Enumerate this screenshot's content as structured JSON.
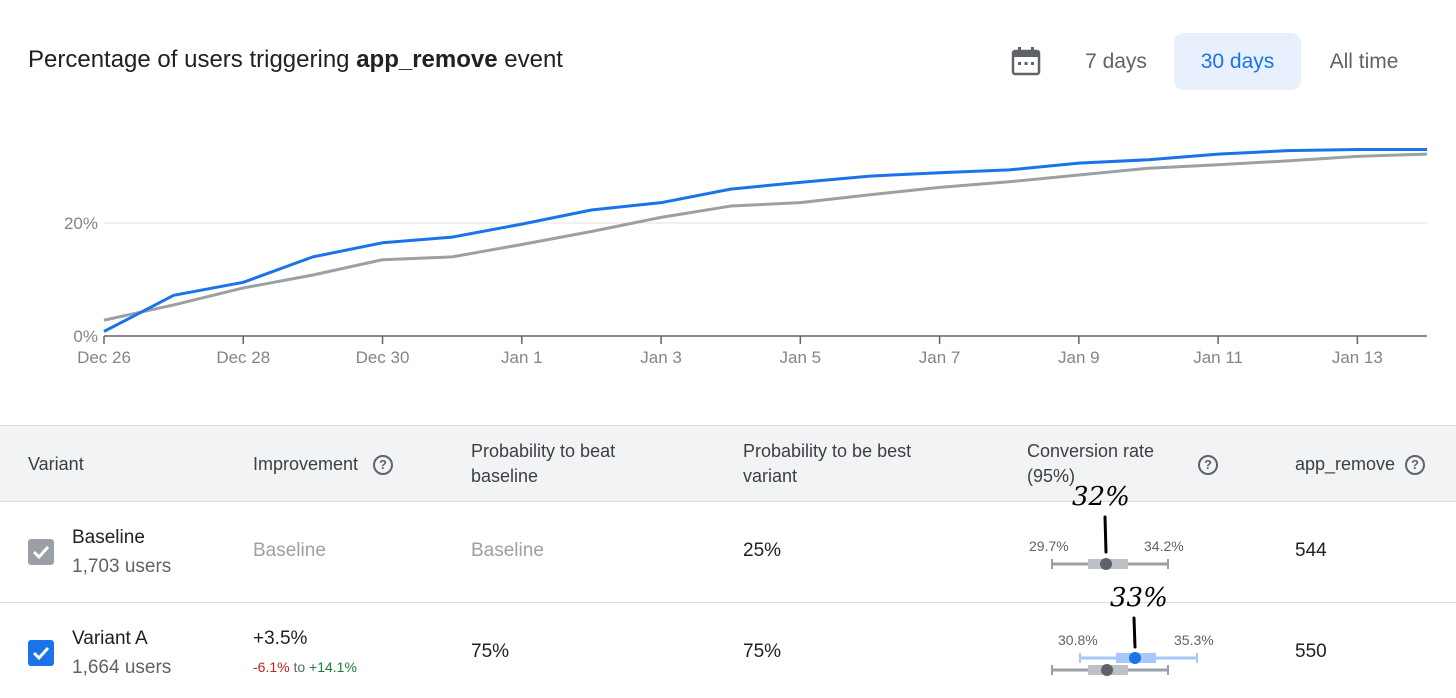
{
  "header": {
    "title_prefix": "Percentage of users triggering ",
    "title_event": "app_remove",
    "title_suffix": " event",
    "calendar_icon": "calendar-icon",
    "ranges": [
      "7 days",
      "30 days",
      "All time"
    ],
    "active_range": "30 days"
  },
  "chart_data": {
    "type": "line",
    "x": [
      "Dec 26",
      "Dec 27",
      "Dec 28",
      "Dec 29",
      "Dec 30",
      "Dec 31",
      "Jan 1",
      "Jan 2",
      "Jan 3",
      "Jan 4",
      "Jan 5",
      "Jan 6",
      "Jan 7",
      "Jan 8",
      "Jan 9",
      "Jan 10",
      "Jan 11",
      "Jan 12",
      "Jan 13",
      "Jan 14"
    ],
    "x_tick_labels": [
      "Dec 26",
      "Dec 28",
      "Dec 30",
      "Jan 1",
      "Jan 3",
      "Jan 5",
      "Jan 7",
      "Jan 9",
      "Jan 11",
      "Jan 13"
    ],
    "y_tick_labels": [
      "0%",
      "20%"
    ],
    "ylim": [
      0,
      40
    ],
    "grid": true,
    "series": [
      {
        "color": "#1a73e8",
        "values": [
          0.8,
          7.2,
          9.5,
          14.0,
          16.5,
          17.5,
          19.8,
          22.3,
          23.6,
          26.0,
          27.2,
          28.3,
          28.9,
          29.4,
          30.6,
          31.2,
          32.2,
          32.8,
          33.0,
          33.0
        ]
      },
      {
        "color": "#9aa0a6",
        "values": [
          2.8,
          5.5,
          8.5,
          10.8,
          13.5,
          14.0,
          16.2,
          18.5,
          21.0,
          23.0,
          23.6,
          25.0,
          26.3,
          27.3,
          28.5,
          29.7,
          30.3,
          31.0,
          31.8,
          32.2
        ]
      }
    ]
  },
  "table": {
    "headers": {
      "variant": "Variant",
      "improvement": "Improvement",
      "prob_beat_1": "Probability to beat",
      "prob_beat_2": "baseline",
      "prob_best_1": "Probability to be best",
      "prob_best_2": "variant",
      "conv_1": "Conversion rate",
      "conv_2": "(95%)",
      "event": "app_remove",
      "help_icon": "?"
    },
    "rows": [
      {
        "name": "Baseline",
        "users": "1,703 users",
        "improvement": "Baseline",
        "prob_beat": "Baseline",
        "prob_best": "25%",
        "ci_low": "29.7%",
        "ci_high": "34.2%",
        "annotation": "32%",
        "count": "544",
        "checked": true,
        "check_color": "#9aa0a6",
        "ci": {
          "low": 29.7,
          "point": 32.0,
          "high": 34.2
        }
      },
      {
        "name": "Variant A",
        "users": "1,664 users",
        "improvement": "+3.5%",
        "improvement_low": "-6.1%",
        "improvement_to": "to",
        "improvement_high": "+14.1%",
        "prob_beat": "75%",
        "prob_best": "75%",
        "ci_low": "30.8%",
        "ci_high": "35.3%",
        "annotation": "33%",
        "count": "550",
        "checked": true,
        "check_color": "#1a73e8",
        "ci": {
          "low": 30.8,
          "point": 33.0,
          "high": 35.3
        }
      }
    ]
  }
}
